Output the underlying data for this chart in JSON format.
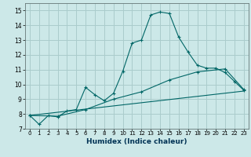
{
  "xlabel": "Humidex (Indice chaleur)",
  "background_color": "#cce8e8",
  "grid_color": "#aacccc",
  "line_color": "#006666",
  "xlim": [
    -0.5,
    23.5
  ],
  "ylim": [
    7,
    15.5
  ],
  "yticks": [
    7,
    8,
    9,
    10,
    11,
    12,
    13,
    14,
    15
  ],
  "xticks": [
    0,
    1,
    2,
    3,
    4,
    5,
    6,
    7,
    8,
    9,
    10,
    11,
    12,
    13,
    14,
    15,
    16,
    17,
    18,
    19,
    20,
    21,
    22,
    23
  ],
  "series1_x": [
    0,
    1,
    2,
    3,
    4,
    5,
    6,
    7,
    8,
    9,
    10,
    11,
    12,
    13,
    14,
    15,
    16,
    17,
    18,
    19,
    20,
    21,
    22,
    23
  ],
  "series1_y": [
    7.9,
    7.3,
    7.9,
    7.8,
    8.2,
    8.3,
    9.8,
    9.3,
    8.9,
    9.4,
    10.9,
    12.8,
    13.0,
    14.7,
    14.9,
    14.8,
    13.2,
    12.2,
    11.3,
    11.1,
    11.1,
    10.8,
    10.2,
    9.6
  ],
  "series2_x": [
    0,
    3,
    6,
    9,
    12,
    15,
    18,
    21,
    23
  ],
  "series2_y": [
    7.9,
    7.85,
    8.3,
    9.0,
    9.5,
    10.3,
    10.85,
    11.05,
    9.65
  ],
  "series3_x": [
    0,
    23
  ],
  "series3_y": [
    7.9,
    9.55
  ]
}
